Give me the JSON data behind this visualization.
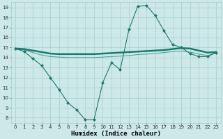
{
  "line1": {
    "x": [
      0,
      1,
      2,
      3,
      4,
      5,
      6,
      7,
      8,
      9,
      10,
      11,
      12,
      13,
      14,
      15,
      16,
      17,
      18,
      19,
      20,
      21,
      22,
      23
    ],
    "y": [
      14.9,
      14.6,
      13.9,
      13.2,
      12.0,
      10.8,
      9.5,
      8.8,
      7.8,
      7.8,
      11.5,
      13.5,
      12.8,
      16.8,
      19.1,
      19.2,
      18.2,
      16.7,
      15.3,
      15.0,
      14.4,
      14.1,
      14.1,
      14.5
    ],
    "color": "#1a7a6e",
    "marker": "D",
    "markersize": 2.0,
    "linewidth": 0.8
  },
  "line2": {
    "x": [
      0,
      1,
      2,
      3,
      4,
      5,
      6,
      7,
      8,
      9,
      10,
      11,
      12,
      13,
      14,
      15,
      16,
      17,
      18,
      19,
      20,
      21,
      22,
      23
    ],
    "y": [
      14.9,
      14.85,
      14.7,
      14.55,
      14.4,
      14.35,
      14.35,
      14.35,
      14.35,
      14.35,
      14.4,
      14.45,
      14.5,
      14.55,
      14.6,
      14.65,
      14.7,
      14.75,
      14.85,
      14.95,
      14.9,
      14.7,
      14.5,
      14.55
    ],
    "color": "#1a7a6e",
    "marker": null,
    "linewidth": 1.8
  },
  "line3": {
    "x": [
      0,
      1,
      2,
      3,
      4,
      5,
      6,
      7,
      8,
      9,
      10,
      11,
      12,
      13,
      14,
      15,
      16,
      17,
      18,
      19,
      20,
      21,
      22,
      23
    ],
    "y": [
      14.85,
      14.75,
      14.5,
      14.25,
      14.1,
      14.05,
      14.0,
      14.0,
      14.0,
      14.0,
      14.05,
      14.1,
      14.15,
      14.2,
      14.3,
      14.35,
      14.4,
      14.5,
      14.6,
      14.65,
      14.55,
      14.35,
      14.2,
      14.45
    ],
    "color": "#3aada0",
    "marker": null,
    "linewidth": 0.8
  },
  "bg_color": "#cce8e8",
  "grid_color": "#a8cece",
  "xlabel": "Humidex (Indice chaleur)",
  "xlim": [
    -0.5,
    23.5
  ],
  "ylim": [
    7.5,
    19.5
  ],
  "xticks": [
    0,
    1,
    2,
    3,
    4,
    5,
    6,
    7,
    8,
    9,
    10,
    11,
    12,
    13,
    14,
    15,
    16,
    17,
    18,
    19,
    20,
    21,
    22,
    23
  ],
  "yticks": [
    8,
    9,
    10,
    11,
    12,
    13,
    14,
    15,
    16,
    17,
    18,
    19
  ],
  "tick_fontsize": 5,
  "xlabel_fontsize": 6.5
}
